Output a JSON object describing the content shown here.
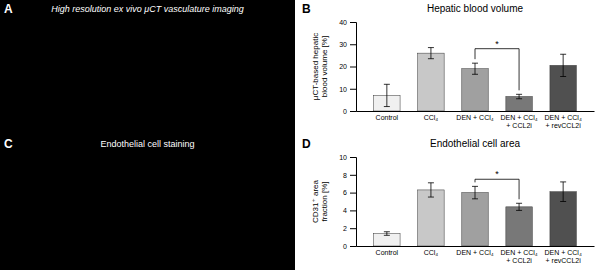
{
  "chart_data": [
    {
      "type": "bar",
      "title": "Hepatic blood volume",
      "ylabel": "μCT-based hepatic\nblood volume [%]",
      "categories": [
        "Control",
        "CCl₄",
        "DEN + CCl₄",
        "DEN + CCl₄\n+ CCL2i",
        "DEN + CCl₄\n+ revCCL2i"
      ],
      "values": [
        7,
        26,
        19,
        6.5,
        20.5
      ],
      "errors": [
        5,
        2.5,
        2.5,
        1,
        5
      ],
      "colors": [
        "#f0f0f0",
        "#c8c8c8",
        "#a0a0a0",
        "#787878",
        "#505050"
      ],
      "ylim": [
        0,
        40
      ],
      "yticks": [
        0,
        10,
        20,
        30,
        40
      ],
      "grid": false,
      "annotations": [
        {
          "text": "B"
        },
        {
          "text": "*",
          "between": [
            2,
            3
          ],
          "y": 28
        }
      ]
    },
    {
      "type": "bar",
      "title": "Endothelial cell area",
      "ylabel": "CD31⁺ area\nfraction [%]",
      "categories": [
        "Control",
        "CCl₄",
        "DEN + CCl₄",
        "DEN + CCl₄\n+ CCL2i",
        "DEN + CCl₄\n+ revCCL2i"
      ],
      "values": [
        1.4,
        6.3,
        6.0,
        4.4,
        6.1
      ],
      "errors": [
        0.2,
        0.8,
        0.7,
        0.4,
        1.1
      ],
      "colors": [
        "#f0f0f0",
        "#c8c8c8",
        "#a0a0a0",
        "#787878",
        "#505050"
      ],
      "ylim": [
        0,
        10
      ],
      "yticks": [
        0,
        2,
        4,
        6,
        8,
        10
      ],
      "grid": false,
      "annotations": [
        {
          "text": "D"
        },
        {
          "text": "*",
          "between": [
            2,
            3
          ],
          "y": 7.5
        }
      ]
    }
  ],
  "annotations": [
    {
      "text": "A"
    },
    {
      "text": "High resolution ex vivo μCT vasculature imaging"
    },
    {
      "text": "C"
    },
    {
      "text": "Endothelial cell staining"
    }
  ]
}
